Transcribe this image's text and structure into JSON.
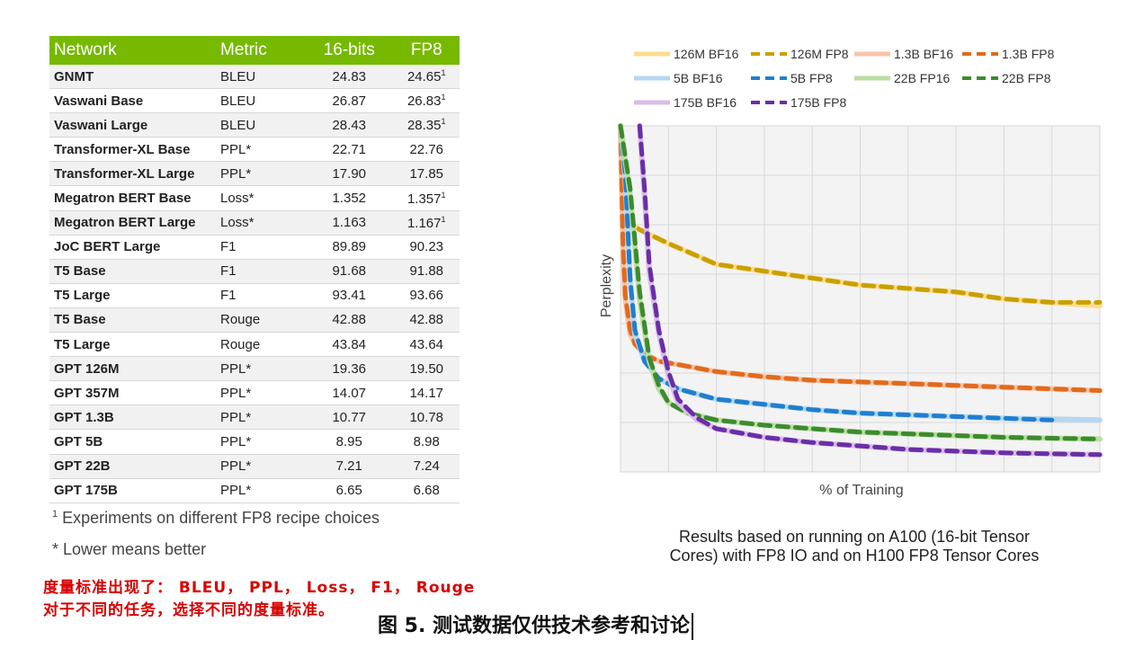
{
  "table": {
    "headers": [
      "Network",
      "Metric",
      "16-bits",
      "FP8"
    ],
    "rows": [
      {
        "network": "GNMT",
        "metric": "BLEU",
        "bits16": "24.83",
        "fp8": "24.65",
        "mark": "1"
      },
      {
        "network": "Vaswani Base",
        "metric": "BLEU",
        "bits16": "26.87",
        "fp8": "26.83",
        "mark": "1"
      },
      {
        "network": "Vaswani Large",
        "metric": "BLEU",
        "bits16": "28.43",
        "fp8": "28.35",
        "mark": "1"
      },
      {
        "network": "Transformer-XL Base",
        "metric": "PPL*",
        "bits16": "22.71",
        "fp8": "22.76",
        "mark": ""
      },
      {
        "network": "Transformer-XL Large",
        "metric": "PPL*",
        "bits16": "17.90",
        "fp8": "17.85",
        "mark": ""
      },
      {
        "network": "Megatron BERT Base",
        "metric": "Loss*",
        "bits16": "1.352",
        "fp8": "1.357",
        "mark": "1"
      },
      {
        "network": "Megatron BERT Large",
        "metric": "Loss*",
        "bits16": "1.163",
        "fp8": "1.167",
        "mark": "1"
      },
      {
        "network": "JoC BERT Large",
        "metric": "F1",
        "bits16": "89.89",
        "fp8": "90.23",
        "mark": ""
      },
      {
        "network": "T5 Base",
        "metric": "F1",
        "bits16": "91.68",
        "fp8": "91.88",
        "mark": ""
      },
      {
        "network": "T5 Large",
        "metric": "F1",
        "bits16": "93.41",
        "fp8": "93.66",
        "mark": ""
      },
      {
        "network": "T5 Base",
        "metric": "Rouge",
        "bits16": "42.88",
        "fp8": "42.88",
        "mark": ""
      },
      {
        "network": "T5 Large",
        "metric": "Rouge",
        "bits16": "43.84",
        "fp8": "43.64",
        "mark": ""
      },
      {
        "network": "GPT 126M",
        "metric": "PPL*",
        "bits16": "19.36",
        "fp8": "19.50",
        "mark": ""
      },
      {
        "network": "GPT 357M",
        "metric": "PPL*",
        "bits16": "14.07",
        "fp8": "14.17",
        "mark": ""
      },
      {
        "network": "GPT 1.3B",
        "metric": "PPL*",
        "bits16": "10.77",
        "fp8": "10.78",
        "mark": ""
      },
      {
        "network": "GPT 5B",
        "metric": "PPL*",
        "bits16": "8.95",
        "fp8": "8.98",
        "mark": ""
      },
      {
        "network": "GPT 22B",
        "metric": "PPL*",
        "bits16": "7.21",
        "fp8": "7.24",
        "mark": ""
      },
      {
        "network": "GPT 175B",
        "metric": "PPL*",
        "bits16": "6.65",
        "fp8": "6.68",
        "mark": ""
      }
    ],
    "header_color": "#76b900"
  },
  "footnotes": {
    "mark": "1",
    "recipe": "Experiments on different FP8 recipe choices",
    "lower": "* Lower means better"
  },
  "annotation": {
    "line1": "度量标准出现了： BLEU， PPL， Loss， F1， Rouge",
    "line2": "对于不同的任务，选择不同的度量标准。",
    "color": "#d90000"
  },
  "caption": "图 5. 测试数据仅供技术参考和讨论",
  "chart_note": {
    "line1": "Results based on running on A100 (16-bit Tensor",
    "line2": "Cores) with FP8 IO and on H100 FP8 Tensor Cores"
  },
  "chart_data": {
    "type": "line",
    "xlabel": "% of Training",
    "ylabel": "Perplexity",
    "xlim": [
      0,
      100
    ],
    "ylim": [
      0,
      100
    ],
    "grid": true,
    "legend_position": "top",
    "series": [
      {
        "name": "126M BF16",
        "color": "#fbdc8e",
        "style": "solid",
        "x": [
          0,
          1,
          2,
          4,
          7,
          10,
          15,
          20,
          30,
          40,
          50,
          60,
          70,
          80,
          90,
          100
        ],
        "y": [
          100,
          78,
          72,
          70,
          68,
          66,
          63,
          60,
          58,
          56,
          54,
          53,
          52,
          50,
          49,
          48
        ]
      },
      {
        "name": "126M FP8",
        "color": "#c9a000",
        "style": "dashed",
        "x": [
          0,
          1,
          2,
          4,
          7,
          10,
          15,
          20,
          30,
          40,
          50,
          60,
          70,
          80,
          90,
          100
        ],
        "y": [
          100,
          80,
          72,
          70,
          68,
          66,
          63,
          60,
          58,
          56,
          54,
          53,
          52,
          50,
          49,
          49
        ]
      },
      {
        "name": "1.3B BF16",
        "color": "#f7c4aa",
        "style": "solid",
        "x": [
          0,
          0.5,
          1,
          2,
          3,
          5,
          8,
          12,
          20,
          30,
          40,
          60,
          80,
          100
        ],
        "y": [
          100,
          65,
          50,
          40,
          37,
          34,
          32,
          31,
          29,
          27.5,
          26.5,
          25.5,
          24.5,
          23.5
        ]
      },
      {
        "name": "1.3B FP8",
        "color": "#e26a1c",
        "style": "dashed",
        "x": [
          0,
          0.5,
          1,
          2,
          3,
          5,
          8,
          12,
          20,
          30,
          40,
          60,
          80,
          100
        ],
        "y": [
          100,
          66,
          51,
          41,
          37,
          34,
          32,
          31,
          29,
          27.5,
          26.5,
          25.5,
          24.5,
          23.5
        ]
      },
      {
        "name": "5B BF16",
        "color": "#b6d7f0",
        "style": "solid",
        "x": [
          0,
          1,
          2,
          3,
          5,
          8,
          12,
          20,
          30,
          40,
          50,
          60,
          80,
          100
        ],
        "y": [
          100,
          85,
          55,
          40,
          32,
          27,
          24,
          21,
          19.5,
          18,
          17,
          16.5,
          15.5,
          15
        ]
      },
      {
        "name": "5B FP8",
        "color": "#1f7fd0",
        "style": "dashed",
        "x": [
          0,
          1,
          2,
          3,
          5,
          8,
          12,
          20,
          30,
          40,
          50,
          60,
          80,
          90
        ],
        "y": [
          100,
          86,
          56,
          41,
          32,
          27,
          24,
          21,
          19.5,
          18,
          17,
          16.5,
          15.5,
          15
        ]
      },
      {
        "name": "22B FP16",
        "color": "#b9dea2",
        "style": "solid",
        "x": [
          0,
          2,
          4,
          6,
          8,
          10,
          14,
          20,
          30,
          40,
          50,
          60,
          80,
          100
        ],
        "y": [
          100,
          80,
          50,
          32,
          24,
          20,
          17,
          15,
          13.5,
          12.5,
          11.5,
          11,
          10,
          9.5
        ]
      },
      {
        "name": "22B FP8",
        "color": "#3c8b2e",
        "style": "dashed",
        "x": [
          0,
          2,
          4,
          6,
          8,
          10,
          14,
          20,
          30,
          40,
          50,
          60,
          80,
          100
        ],
        "y": [
          100,
          82,
          52,
          33,
          25,
          20,
          17,
          15,
          13.5,
          12.5,
          11.5,
          11,
          10,
          9.5
        ]
      },
      {
        "name": "175B BF16",
        "color": "#d8bce8",
        "style": "solid",
        "x": [
          4,
          5,
          6,
          8,
          10,
          12,
          16,
          20,
          30,
          40,
          50,
          60,
          80,
          100
        ],
        "y": [
          100,
          80,
          58,
          40,
          28,
          20,
          15,
          12.5,
          10,
          8.5,
          7.5,
          6.5,
          5.5,
          5
        ]
      },
      {
        "name": "175B FP8",
        "color": "#6a2ea8",
        "style": "dashed",
        "x": [
          4,
          5,
          6,
          8,
          10,
          12,
          16,
          20,
          30,
          40,
          50,
          60,
          80,
          100
        ],
        "y": [
          100,
          82,
          60,
          41,
          29,
          21,
          15.5,
          12.5,
          10,
          8.5,
          7.5,
          6.5,
          5.5,
          5
        ]
      }
    ]
  }
}
